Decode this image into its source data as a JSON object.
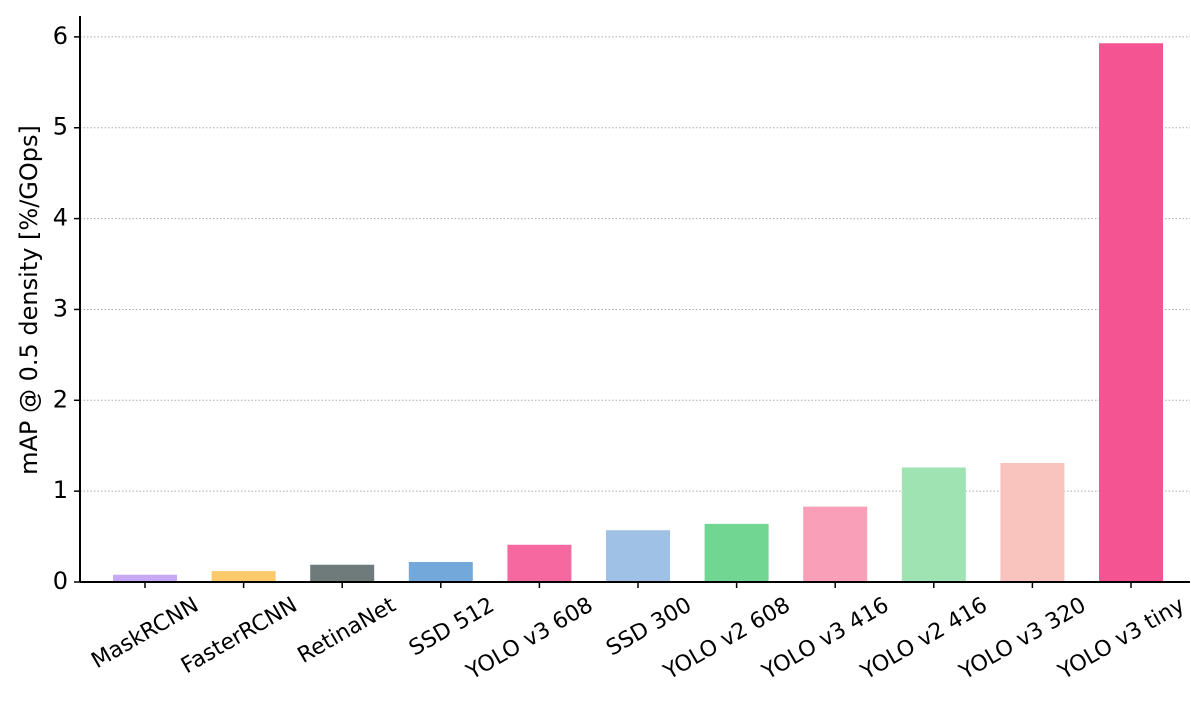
{
  "chart_data": {
    "type": "bar",
    "ylabel": "mAP @ 0.5 density [%/GOps]",
    "categories": [
      "MaskRCNN",
      "FasterRCNN",
      "RetinaNet",
      "SSD 512",
      "YOLO v3 608",
      "SSD 300",
      "YOLO v2 608",
      "YOLO v3 416",
      "YOLO v2 416",
      "YOLO v3 320",
      "YOLO v3 tiny"
    ],
    "values": [
      0.08,
      0.12,
      0.19,
      0.22,
      0.41,
      0.57,
      0.64,
      0.83,
      1.26,
      1.31,
      5.93
    ],
    "colors": [
      "#c9a9f5",
      "#fcc96b",
      "#6e7b7a",
      "#73a8da",
      "#f568a0",
      "#9fc1e6",
      "#72d693",
      "#f9a0b8",
      "#9fe3b3",
      "#fac4be",
      "#f45592"
    ],
    "ylim": [
      0,
      6.23
    ],
    "yticks": [
      0,
      1,
      2,
      3,
      4,
      5,
      6
    ],
    "grid": true
  }
}
